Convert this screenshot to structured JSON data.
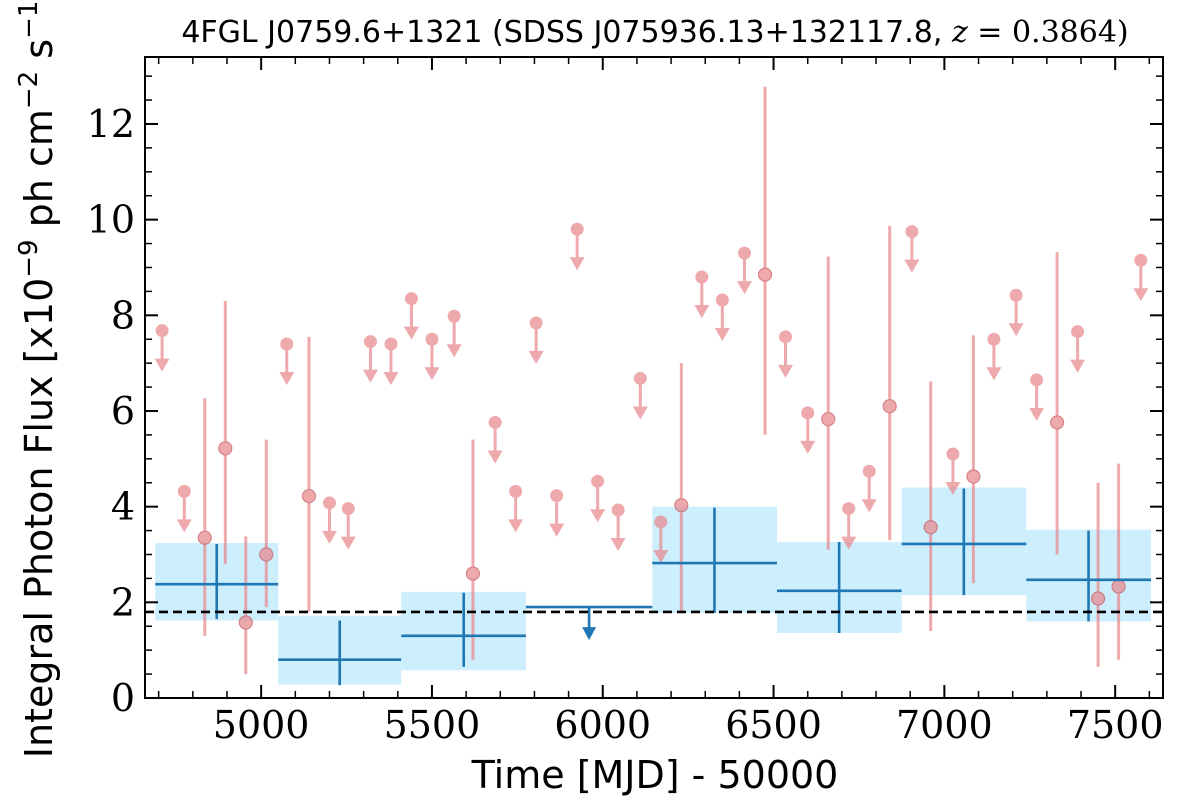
{
  "chart_data": {
    "type": "scatter",
    "title": "4FGL J0759.6+1321 (SDSS J075936.13+132117.8, z = 0.3864)",
    "xlabel": "Time [MJD] - 50000",
    "ylabel": "Integral Photon Flux [x10^-9 ph cm^-2 s^-1]",
    "xlim": [
      4660,
      7640
    ],
    "ylim": [
      0,
      13.4
    ],
    "x_ticks": [
      5000,
      5500,
      6000,
      6500,
      7000,
      7500
    ],
    "y_ticks": [
      0,
      2,
      4,
      6,
      8,
      10,
      12
    ],
    "reference_line": {
      "y": 1.8,
      "style": "dashed"
    },
    "colors": {
      "fine": "#e8888e",
      "coarse": "#1f77b4",
      "band": "#cdeefc"
    },
    "coarse_bins": [
      {
        "x0": 4690,
        "x1": 5050,
        "y": 2.38,
        "band_low": 1.62,
        "band_high": 3.24,
        "center": 4870,
        "err_low": 1.65,
        "err_high": 3.22,
        "upper_limit": false
      },
      {
        "x0": 5050,
        "x1": 5410,
        "y": 0.8,
        "band_low": 0.28,
        "band_high": 1.72,
        "center": 5230,
        "err_low": 0.27,
        "err_high": 1.62,
        "upper_limit": false
      },
      {
        "x0": 5410,
        "x1": 5775,
        "y": 1.3,
        "band_low": 0.58,
        "band_high": 2.22,
        "center": 5593,
        "err_low": 0.65,
        "err_high": 2.2,
        "upper_limit": false
      },
      {
        "x0": 5775,
        "x1": 6145,
        "y": 1.9,
        "center": 5960,
        "upper_limit": true
      },
      {
        "x0": 6145,
        "x1": 6510,
        "y": 2.82,
        "band_low": 1.78,
        "band_high": 4.0,
        "center": 6327,
        "err_low": 1.78,
        "err_high": 3.98,
        "upper_limit": false
      },
      {
        "x0": 6510,
        "x1": 6875,
        "y": 2.24,
        "band_low": 1.36,
        "band_high": 3.26,
        "center": 6692,
        "err_low": 1.36,
        "err_high": 3.26,
        "upper_limit": false
      },
      {
        "x0": 6875,
        "x1": 7240,
        "y": 3.22,
        "band_low": 2.15,
        "band_high": 4.4,
        "center": 7057,
        "err_low": 2.15,
        "err_high": 4.38,
        "upper_limit": false
      },
      {
        "x0": 7240,
        "x1": 7605,
        "y": 2.47,
        "band_low": 1.6,
        "band_high": 3.52,
        "center": 7422,
        "err_low": 1.6,
        "err_high": 3.5,
        "upper_limit": false
      }
    ],
    "fine_points": [
      {
        "x": 4710,
        "y": 7.68,
        "upper_limit": true
      },
      {
        "x": 4775,
        "y": 4.32,
        "upper_limit": true
      },
      {
        "x": 4835,
        "y": 3.35,
        "err_low": 1.3,
        "err_high": 6.27,
        "upper_limit": false
      },
      {
        "x": 4895,
        "y": 5.22,
        "err_low": 2.8,
        "err_high": 8.3,
        "upper_limit": false
      },
      {
        "x": 4955,
        "y": 1.58,
        "err_low": 0.5,
        "err_high": 3.38,
        "upper_limit": false
      },
      {
        "x": 5015,
        "y": 3.0,
        "err_low": 1.9,
        "err_high": 5.4,
        "upper_limit": false
      },
      {
        "x": 5075,
        "y": 7.4,
        "upper_limit": true
      },
      {
        "x": 5140,
        "y": 4.22,
        "err_low": 1.8,
        "err_high": 7.55,
        "upper_limit": false
      },
      {
        "x": 5200,
        "y": 4.08,
        "upper_limit": true
      },
      {
        "x": 5255,
        "y": 3.96,
        "upper_limit": true
      },
      {
        "x": 5320,
        "y": 7.45,
        "upper_limit": true
      },
      {
        "x": 5380,
        "y": 7.4,
        "upper_limit": true
      },
      {
        "x": 5440,
        "y": 8.35,
        "upper_limit": true
      },
      {
        "x": 5500,
        "y": 7.5,
        "upper_limit": true
      },
      {
        "x": 5565,
        "y": 7.98,
        "upper_limit": true
      },
      {
        "x": 5620,
        "y": 2.6,
        "err_low": 0.8,
        "err_high": 5.4,
        "upper_limit": false
      },
      {
        "x": 5685,
        "y": 5.76,
        "upper_limit": true
      },
      {
        "x": 5745,
        "y": 4.32,
        "upper_limit": true
      },
      {
        "x": 5805,
        "y": 7.84,
        "upper_limit": true
      },
      {
        "x": 5865,
        "y": 4.23,
        "upper_limit": true
      },
      {
        "x": 5925,
        "y": 9.8,
        "upper_limit": true
      },
      {
        "x": 5985,
        "y": 4.53,
        "upper_limit": true
      },
      {
        "x": 6045,
        "y": 3.93,
        "upper_limit": true
      },
      {
        "x": 6110,
        "y": 6.68,
        "upper_limit": true
      },
      {
        "x": 6170,
        "y": 3.68,
        "upper_limit": true
      },
      {
        "x": 6230,
        "y": 4.03,
        "err_low": 1.8,
        "err_high": 7.0,
        "upper_limit": false
      },
      {
        "x": 6290,
        "y": 8.8,
        "upper_limit": true
      },
      {
        "x": 6350,
        "y": 8.32,
        "upper_limit": true
      },
      {
        "x": 6415,
        "y": 9.3,
        "upper_limit": true
      },
      {
        "x": 6475,
        "y": 8.85,
        "err_low": 5.5,
        "err_high": 12.78,
        "upper_limit": false
      },
      {
        "x": 6535,
        "y": 7.55,
        "upper_limit": true
      },
      {
        "x": 6600,
        "y": 5.96,
        "upper_limit": true
      },
      {
        "x": 6660,
        "y": 5.83,
        "err_low": 3.1,
        "err_high": 9.23,
        "upper_limit": false
      },
      {
        "x": 6720,
        "y": 3.96,
        "upper_limit": true
      },
      {
        "x": 6780,
        "y": 4.74,
        "upper_limit": true
      },
      {
        "x": 6840,
        "y": 6.1,
        "err_low": 3.3,
        "err_high": 9.87,
        "upper_limit": false
      },
      {
        "x": 6905,
        "y": 9.75,
        "upper_limit": true
      },
      {
        "x": 6960,
        "y": 3.57,
        "err_low": 1.4,
        "err_high": 6.62,
        "upper_limit": false
      },
      {
        "x": 7025,
        "y": 5.1,
        "upper_limit": true
      },
      {
        "x": 7085,
        "y": 4.63,
        "err_low": 2.4,
        "err_high": 7.58,
        "upper_limit": false
      },
      {
        "x": 7145,
        "y": 7.5,
        "upper_limit": true
      },
      {
        "x": 7210,
        "y": 8.42,
        "upper_limit": true
      },
      {
        "x": 7270,
        "y": 6.65,
        "upper_limit": true
      },
      {
        "x": 7330,
        "y": 5.76,
        "err_low": 3.0,
        "err_high": 9.32,
        "upper_limit": false
      },
      {
        "x": 7390,
        "y": 7.66,
        "upper_limit": true
      },
      {
        "x": 7450,
        "y": 2.08,
        "err_low": 0.65,
        "err_high": 4.5,
        "upper_limit": false
      },
      {
        "x": 7510,
        "y": 2.33,
        "err_low": 0.8,
        "err_high": 4.9,
        "upper_limit": false
      },
      {
        "x": 7575,
        "y": 9.15,
        "upper_limit": true
      }
    ]
  }
}
